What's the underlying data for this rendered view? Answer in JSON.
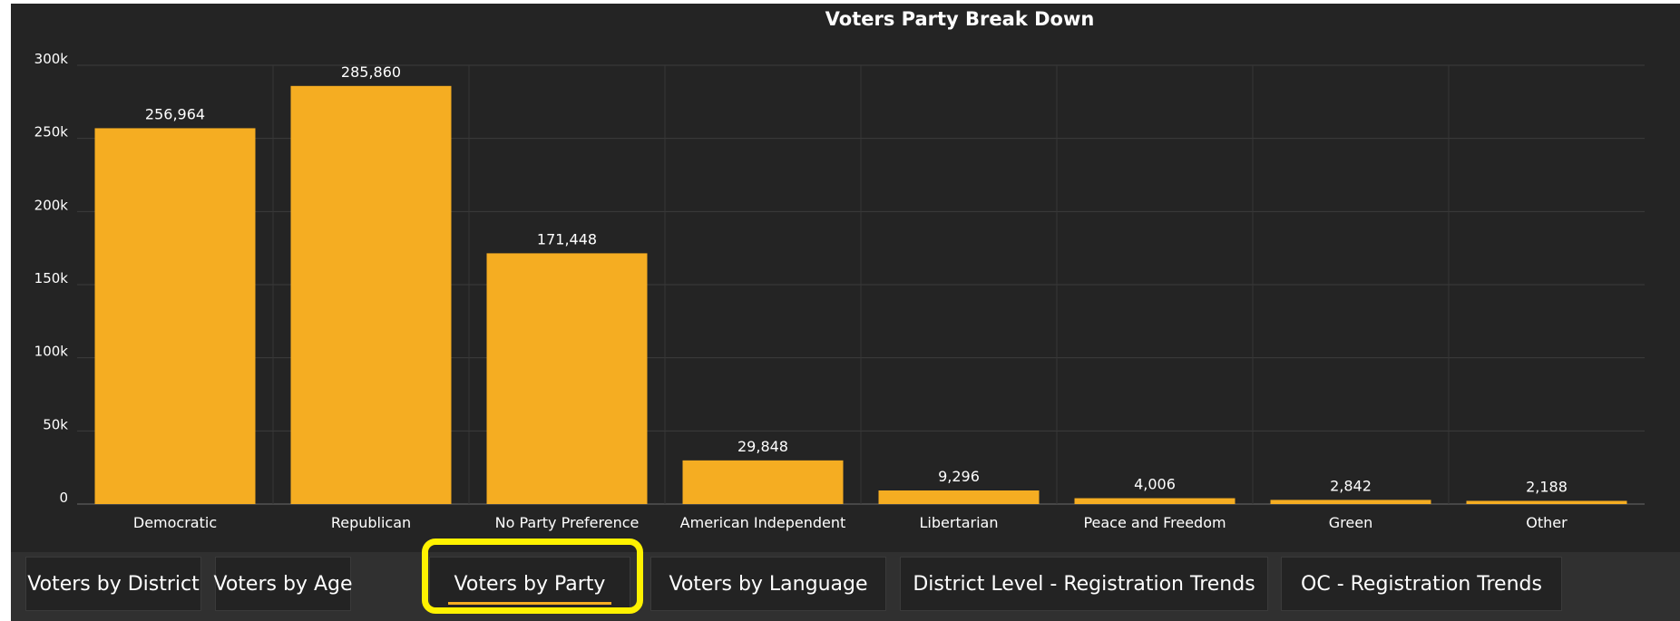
{
  "chart_data": {
    "type": "bar",
    "title": "Voters Party Break Down",
    "categories": [
      "Democratic",
      "Republican",
      "No Party Preference",
      "American Independent",
      "Libertarian",
      "Peace and Freedom",
      "Green",
      "Other"
    ],
    "values": [
      256964,
      285860,
      171448,
      29848,
      9296,
      4006,
      2842,
      2188
    ],
    "data_labels": [
      "256,964",
      "285,860",
      "171,448",
      "29,848",
      "9,296",
      "4,006",
      "2,842",
      "2,188"
    ],
    "y_ticks": [
      0,
      50000,
      100000,
      150000,
      200000,
      250000,
      300000
    ],
    "y_tick_labels": [
      "0",
      "50k",
      "100k",
      "150k",
      "200k",
      "250k",
      "300k"
    ],
    "ylim": [
      0,
      300000
    ],
    "xlabel": "",
    "ylabel": "",
    "grid": true,
    "legend": "none",
    "bar_color": "#f5ad22",
    "background_color": "#242424"
  },
  "tabs": [
    {
      "label": "Voters by District",
      "active": false
    },
    {
      "label": "Voters by Age",
      "active": false
    },
    {
      "label": "Voters by Party",
      "active": true
    },
    {
      "label": "Voters by Language",
      "active": false
    },
    {
      "label": "District Level - Registration Trends",
      "active": false
    },
    {
      "label": "OC - Registration Trends",
      "active": false
    }
  ],
  "colors": {
    "accent": "#f5ad22",
    "highlight": "#fff200"
  }
}
